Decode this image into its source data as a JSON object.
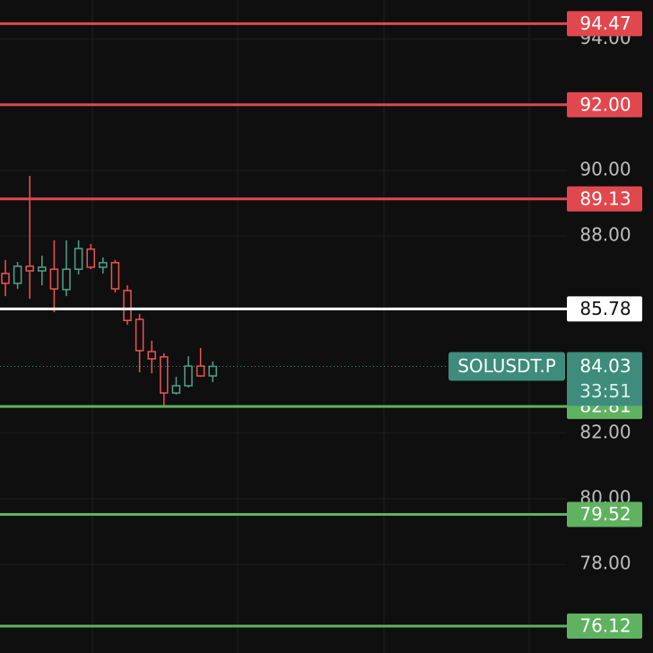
{
  "chart_data": {
    "type": "candlestick",
    "symbol": "SOLUSDT.P",
    "open": [
      86.86,
      86.56,
      87.08,
      86.94,
      86.99,
      86.37,
      86.99,
      87.6,
      87.05,
      87.19,
      86.34,
      85.46,
      84.48,
      84.32,
      83.22,
      83.44,
      84.04,
      83.74
    ],
    "high": [
      87.27,
      87.21,
      89.83,
      87.4,
      87.87,
      87.87,
      87.87,
      87.76,
      87.35,
      87.27,
      86.5,
      85.63,
      84.81,
      84.43,
      83.71,
      84.34,
      84.59,
      84.18
    ],
    "low": [
      86.17,
      86.39,
      86.09,
      86.5,
      85.68,
      86.17,
      86.83,
      86.99,
      86.86,
      86.28,
      85.3,
      83.85,
      83.82,
      82.84,
      83.17,
      83.39,
      83.71,
      83.55
    ],
    "close": [
      86.56,
      87.08,
      86.94,
      87.05,
      86.39,
      86.99,
      87.62,
      87.05,
      87.19,
      86.39,
      85.43,
      84.51,
      84.26,
      83.22,
      83.44,
      84.04,
      83.74,
      84.03
    ],
    "up_color": "#4ea38c",
    "down_color": "#ef5350",
    "ylim": [
      75.3,
      95.19
    ],
    "yticks": [
      {
        "value": 78,
        "label": "78.00"
      },
      {
        "value": 80,
        "label": "80.00"
      },
      {
        "value": 82,
        "label": "82.00"
      },
      {
        "value": 88,
        "label": "88.00"
      },
      {
        "value": 90,
        "label": "90.00"
      },
      {
        "value": 94,
        "label": "94.00"
      }
    ],
    "grid": true,
    "levels": [
      {
        "value": 94.47,
        "label": "94.47",
        "color": "#e0484e"
      },
      {
        "value": 92,
        "label": "92.00",
        "color": "#e0484e"
      },
      {
        "value": 89.13,
        "label": "89.13",
        "color": "#e0484e"
      },
      {
        "value": 85.78,
        "label": "85.78",
        "color": "#ffffff"
      },
      {
        "value": 82.81,
        "label": "82.81",
        "color": "#5fb25f"
      },
      {
        "value": 79.52,
        "label": "79.52",
        "color": "#5fb25f"
      },
      {
        "value": 76.12,
        "label": "76.12",
        "color": "#5fb25f"
      }
    ],
    "last_price": {
      "value": 84.03,
      "label": "84.03",
      "countdown": "33:51",
      "color": "#3d8c7c"
    }
  }
}
